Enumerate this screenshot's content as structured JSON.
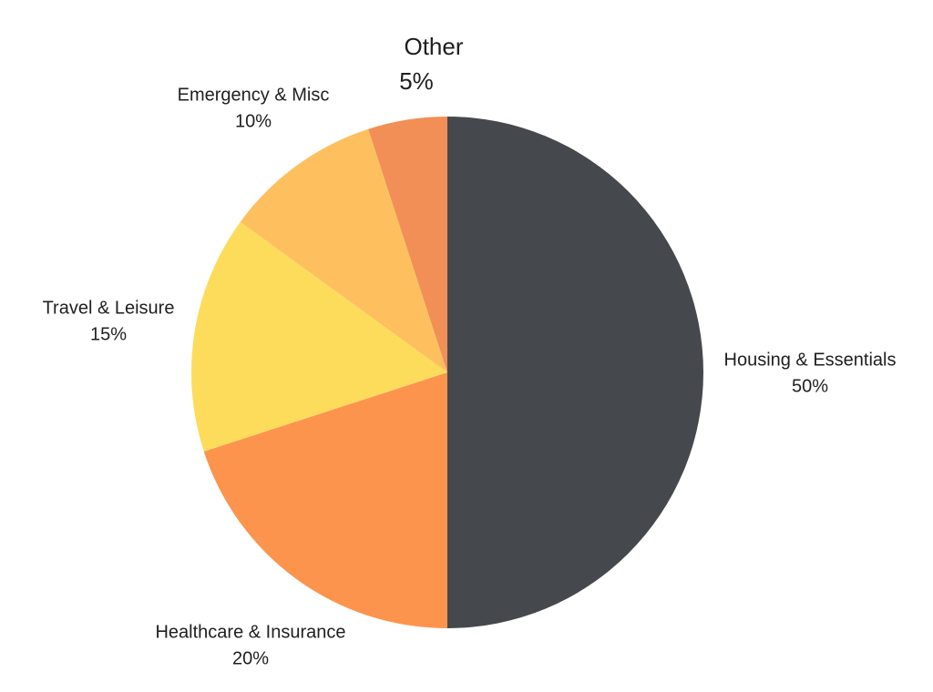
{
  "chart_data": {
    "type": "pie",
    "title": "",
    "slices": [
      {
        "label": "Housing & Essentials",
        "value": 50,
        "display": "50%",
        "color": "#45484c"
      },
      {
        "label": "Healthcare & Insurance",
        "value": 20,
        "display": "20%",
        "color": "#fd944d"
      },
      {
        "label": "Travel & Leisure",
        "value": 15,
        "display": "15%",
        "color": "#fddc5c"
      },
      {
        "label": "Emergency & Misc",
        "value": 10,
        "display": "10%",
        "color": "#fec05e"
      },
      {
        "label": "Other",
        "value": 5,
        "display": "5%",
        "color": "#f18f56"
      }
    ],
    "start_angle": "12 o'clock",
    "direction": "clockwise",
    "legend": "none",
    "labels": "outside slices"
  }
}
